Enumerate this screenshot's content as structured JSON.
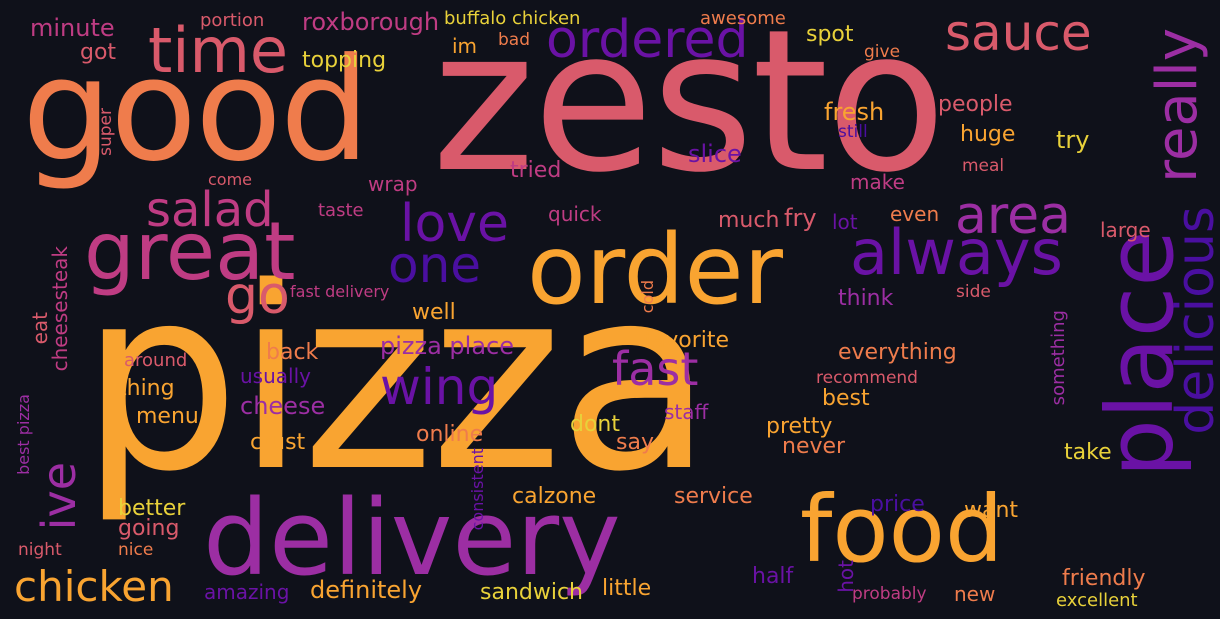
{
  "words": {
    "pizza": "pizza",
    "zesto": "zesto",
    "good": "good",
    "delivery": "delivery",
    "order": "order",
    "place": "place",
    "food": "food",
    "great": "great",
    "time": "time",
    "ordered": "ordered",
    "sauce": "sauce",
    "really": "really",
    "delicious": "delicious",
    "area": "area",
    "always": "always",
    "wing": "wing",
    "love": "love",
    "one": "one",
    "salad": "salad",
    "go": "go",
    "ive": "ive",
    "chicken": "chicken",
    "fast": "fast",
    "minute": "minute",
    "got": "got",
    "portion": "portion",
    "roxborough": "roxborough",
    "buffalo_chicken": "buffalo chicken",
    "awesome": "awesome",
    "im": "im",
    "bad": "bad",
    "spot": "spot",
    "give": "give",
    "topping": "topping",
    "super": "super",
    "fresh": "fresh",
    "people": "people",
    "still": "still",
    "huge": "huge",
    "try": "try",
    "slice": "slice",
    "tried": "tried",
    "meal": "meal",
    "come": "come",
    "wrap": "wrap",
    "make": "make",
    "taste": "taste",
    "quick": "quick",
    "much": "much",
    "fry": "fry",
    "lot": "lot",
    "even": "even",
    "large": "large",
    "fast_delivery": "fast delivery",
    "cold": "cold",
    "think": "think",
    "side": "side",
    "eat": "eat",
    "cheesesteak": "cheesesteak",
    "well": "well",
    "pizza_place": "pizza place",
    "favorite": "favorite",
    "something": "something",
    "back": "back",
    "everything": "everything",
    "around": "around",
    "usually": "usually",
    "recommend": "recommend",
    "thing": "thing",
    "cheese": "cheese",
    "best": "best",
    "menu": "menu",
    "staff": "staff",
    "dont": "dont",
    "pretty": "pretty",
    "crust": "crust",
    "online": "online",
    "say": "say",
    "never": "never",
    "take": "take",
    "best_pizza": "best pizza",
    "consistent": "consistent",
    "better": "better",
    "calzone": "calzone",
    "service": "service",
    "price": "price",
    "want": "want",
    "going": "going",
    "night": "night",
    "nice": "nice",
    "hot": "hot",
    "half": "half",
    "friendly": "friendly",
    "amazing": "amazing",
    "definitely": "definitely",
    "sandwich": "sandwich",
    "little": "little",
    "probably": "probably",
    "new": "new",
    "excellent": "excellent"
  }
}
